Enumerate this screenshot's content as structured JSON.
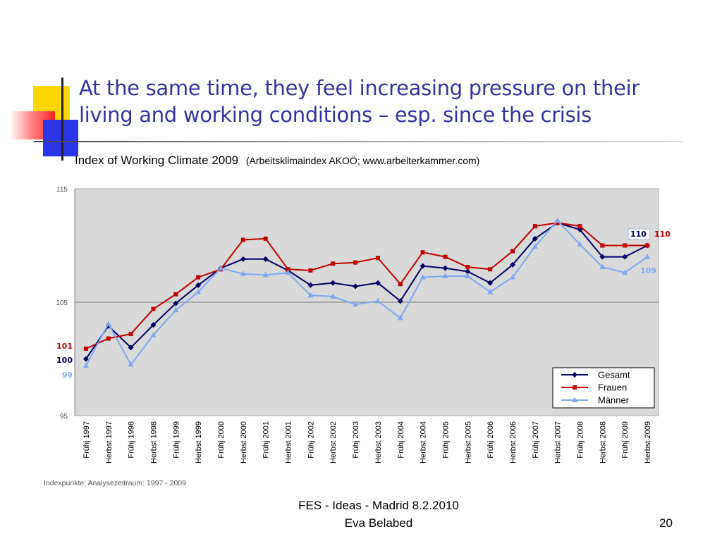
{
  "slide": {
    "title": "At the same time, they feel increasing pressure on their living and working conditions – esp. since the crisis",
    "subtitle_main": "Index of Working Climate 2009",
    "subtitle_source": "(Arbeitsklimaindex AKOÖ; www.arbeiterkammer.com)",
    "footer_line1": "FES - Ideas - Madrid 8.2.2010",
    "footer_line2": "Eva Belabed",
    "page_number": "20"
  },
  "colors": {
    "title": "#3333a0",
    "plot_background": "#d9d9d9",
    "gesamt": "#000066",
    "frauen": "#c00000",
    "maenner": "#7fa7f0"
  },
  "chart_data": {
    "type": "line",
    "title": "",
    "xlabel": "",
    "ylabel": "",
    "ylim": [
      95,
      115
    ],
    "yticks": [
      "115",
      "105",
      "95"
    ],
    "grid": "horizontal line at 105",
    "legend": "bottom-right",
    "note": "Indexpunkte; Analysezeitraum: 1997 - 2009",
    "categories": [
      "Frühj 1997",
      "Herbst 1997",
      "Frühj 1998",
      "Herbst 1998",
      "Frühj 1999",
      "Herbst 1999",
      "Frühj 2000",
      "Herbst 2000",
      "Frühj 2001",
      "Herbst 2001",
      "Frühj 2002",
      "Herbst 2002",
      "Frühj 2003",
      "Herbst 2003",
      "Frühj 2004",
      "Herbst 2004",
      "Frühj 2005",
      "Herbst 2005",
      "Frühj 2006",
      "Herbst 2006",
      "Frühj 2007",
      "Herbst 2007",
      "Frühj 2008",
      "Herbst 2008",
      "Frühj 2009",
      "Herbst 2009"
    ],
    "series": [
      {
        "name": "Gesamt",
        "marker": "diamond",
        "values": [
          100.0,
          102.9,
          101.0,
          103.0,
          104.9,
          106.5,
          108.0,
          108.8,
          108.8,
          107.8,
          106.5,
          106.7,
          106.4,
          106.7,
          105.1,
          108.2,
          108.0,
          107.7,
          106.7,
          108.3,
          110.6,
          112.0,
          111.4,
          109.0,
          109.0,
          110.0
        ],
        "start_label": "100",
        "end_label": "110"
      },
      {
        "name": "Frauen",
        "marker": "square",
        "values": [
          100.9,
          101.8,
          102.2,
          104.4,
          105.7,
          107.2,
          107.9,
          110.5,
          110.6,
          107.9,
          107.8,
          108.4,
          108.5,
          108.9,
          106.6,
          109.4,
          109.0,
          108.1,
          107.9,
          109.5,
          111.7,
          112.0,
          111.7,
          110.0,
          110.0,
          110.0
        ],
        "start_label": "101",
        "end_label": "110"
      },
      {
        "name": "Männer",
        "marker": "triangle",
        "values": [
          99.4,
          103.1,
          99.5,
          102.1,
          104.3,
          105.9,
          108.0,
          107.5,
          107.4,
          107.6,
          105.6,
          105.5,
          104.8,
          105.1,
          103.6,
          107.2,
          107.3,
          107.3,
          105.9,
          107.2,
          109.9,
          112.2,
          110.1,
          108.1,
          107.6,
          109.0
        ],
        "start_label": "99",
        "end_label": "109"
      }
    ]
  }
}
